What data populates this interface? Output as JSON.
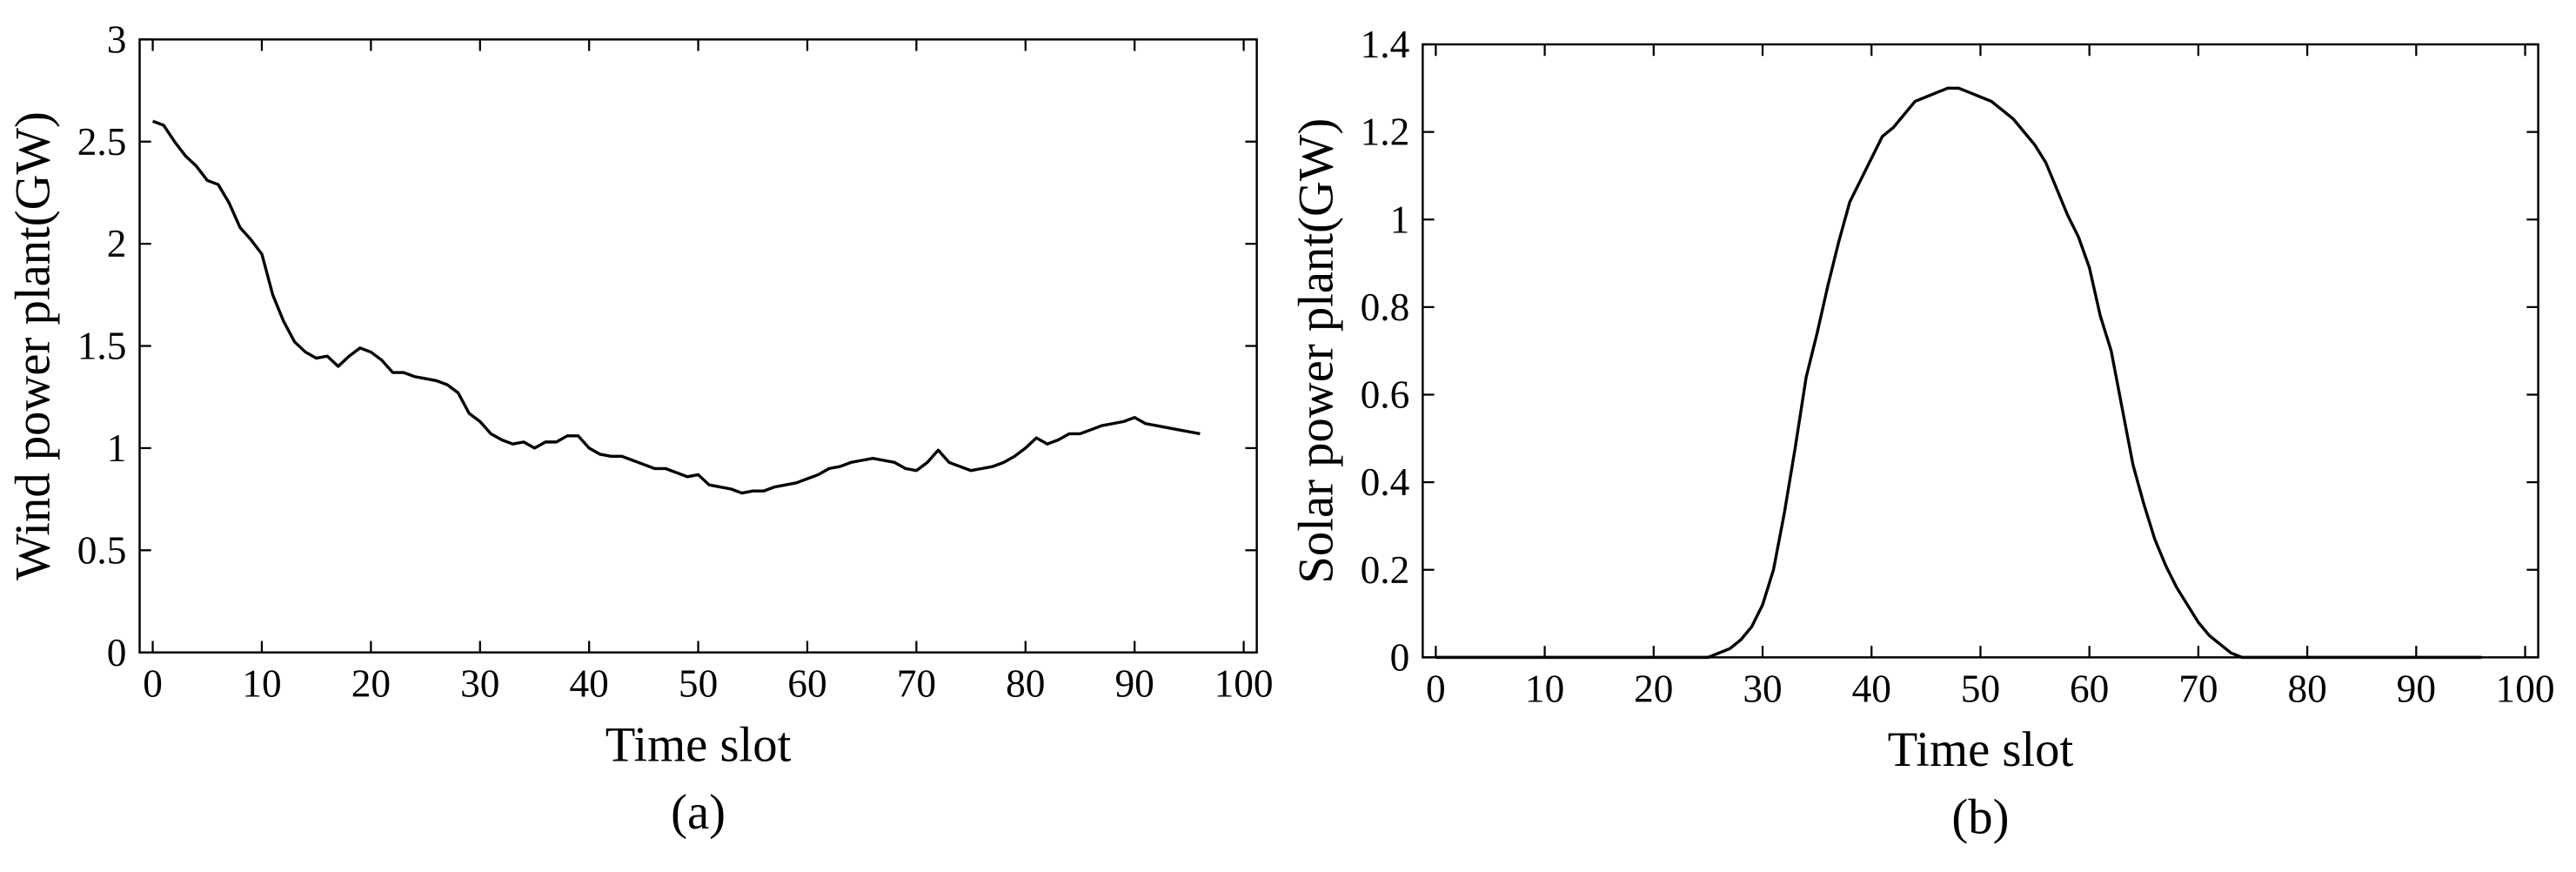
{
  "chart_data": [
    {
      "type": "line",
      "xlabel": "Time slot",
      "ylabel": "Wind power plant(GW)",
      "caption": "(a)",
      "x": [
        0,
        1,
        2,
        3,
        4,
        5,
        6,
        7,
        8,
        9,
        10,
        11,
        12,
        13,
        14,
        15,
        16,
        17,
        18,
        19,
        20,
        21,
        22,
        23,
        24,
        25,
        26,
        27,
        28,
        29,
        30,
        31,
        32,
        33,
        34,
        35,
        36,
        37,
        38,
        39,
        40,
        41,
        42,
        43,
        44,
        45,
        46,
        47,
        48,
        49,
        50,
        51,
        52,
        53,
        54,
        55,
        56,
        57,
        58,
        59,
        60,
        61,
        62,
        63,
        64,
        65,
        66,
        67,
        68,
        69,
        70,
        71,
        72,
        73,
        74,
        75,
        76,
        77,
        78,
        79,
        80,
        81,
        82,
        83,
        84,
        85,
        86,
        87,
        88,
        89,
        90,
        91,
        92,
        93,
        94,
        95,
        96
      ],
      "series": [
        {
          "color": "#000000",
          "values": [
            2.6,
            2.58,
            2.5,
            2.43,
            2.38,
            2.31,
            2.29,
            2.2,
            2.08,
            2.02,
            1.95,
            1.75,
            1.62,
            1.52,
            1.47,
            1.44,
            1.45,
            1.4,
            1.45,
            1.49,
            1.47,
            1.43,
            1.37,
            1.37,
            1.35,
            1.34,
            1.33,
            1.31,
            1.27,
            1.17,
            1.13,
            1.07,
            1.04,
            1.02,
            1.03,
            1.0,
            1.03,
            1.03,
            1.06,
            1.06,
            1.0,
            0.97,
            0.96,
            0.96,
            0.94,
            0.92,
            0.9,
            0.9,
            0.88,
            0.86,
            0.87,
            0.82,
            0.81,
            0.8,
            0.78,
            0.79,
            0.79,
            0.81,
            0.82,
            0.83,
            0.85,
            0.87,
            0.9,
            0.91,
            0.93,
            0.94,
            0.95,
            0.94,
            0.93,
            0.9,
            0.89,
            0.93,
            0.99,
            0.93,
            0.91,
            0.89,
            0.9,
            0.91,
            0.93,
            0.96,
            1.0,
            1.05,
            1.02,
            1.04,
            1.07,
            1.07,
            1.09,
            1.11,
            1.12,
            1.13,
            1.15,
            1.12,
            1.11,
            1.1,
            1.09,
            1.08,
            1.07
          ]
        }
      ],
      "xlim": [
        -1.2,
        101.2
      ],
      "xticks": [
        0,
        10,
        20,
        30,
        40,
        50,
        60,
        70,
        80,
        90,
        100
      ],
      "ylim": [
        0,
        3
      ],
      "yticks": [
        0,
        0.5,
        1,
        1.5,
        2,
        2.5,
        3
      ]
    },
    {
      "type": "line",
      "xlabel": "Time slot",
      "ylabel": "Solar power plant(GW)",
      "caption": "(b)",
      "x": [
        0,
        1,
        2,
        3,
        4,
        5,
        6,
        7,
        8,
        9,
        10,
        11,
        12,
        13,
        14,
        15,
        16,
        17,
        18,
        19,
        20,
        21,
        22,
        23,
        24,
        25,
        26,
        27,
        28,
        29,
        30,
        31,
        32,
        33,
        34,
        35,
        36,
        37,
        38,
        39,
        40,
        41,
        42,
        43,
        44,
        45,
        46,
        47,
        48,
        49,
        50,
        51,
        52,
        53,
        54,
        55,
        56,
        57,
        58,
        59,
        60,
        61,
        62,
        63,
        64,
        65,
        66,
        67,
        68,
        69,
        70,
        71,
        72,
        73,
        74,
        75,
        76,
        77,
        78,
        79,
        80,
        81,
        82,
        83,
        84,
        85,
        86,
        87,
        88,
        89,
        90,
        91,
        92,
        93,
        94,
        95,
        96
      ],
      "series": [
        {
          "color": "#000000",
          "values": [
            0,
            0,
            0,
            0,
            0,
            0,
            0,
            0,
            0,
            0,
            0,
            0,
            0,
            0,
            0,
            0,
            0,
            0,
            0,
            0,
            0,
            0,
            0,
            0,
            0,
            0,
            0.01,
            0.02,
            0.04,
            0.07,
            0.12,
            0.2,
            0.33,
            0.48,
            0.64,
            0.74,
            0.85,
            0.95,
            1.04,
            1.09,
            1.14,
            1.19,
            1.21,
            1.24,
            1.27,
            1.28,
            1.29,
            1.3,
            1.3,
            1.29,
            1.28,
            1.27,
            1.25,
            1.23,
            1.2,
            1.17,
            1.13,
            1.07,
            1.01,
            0.96,
            0.89,
            0.78,
            0.7,
            0.57,
            0.44,
            0.35,
            0.27,
            0.21,
            0.16,
            0.12,
            0.08,
            0.05,
            0.03,
            0.01,
            0,
            0,
            0,
            0,
            0,
            0,
            0,
            0,
            0,
            0,
            0,
            0,
            0,
            0,
            0,
            0,
            0,
            0,
            0,
            0,
            0,
            0,
            0
          ]
        }
      ],
      "xlim": [
        -1.2,
        101.2
      ],
      "xticks": [
        0,
        10,
        20,
        30,
        40,
        50,
        60,
        70,
        80,
        90,
        100
      ],
      "ylim": [
        0,
        1.4
      ],
      "yticks": [
        0,
        0.2,
        0.4,
        0.6,
        0.8,
        1,
        1.2,
        1.4
      ]
    }
  ]
}
